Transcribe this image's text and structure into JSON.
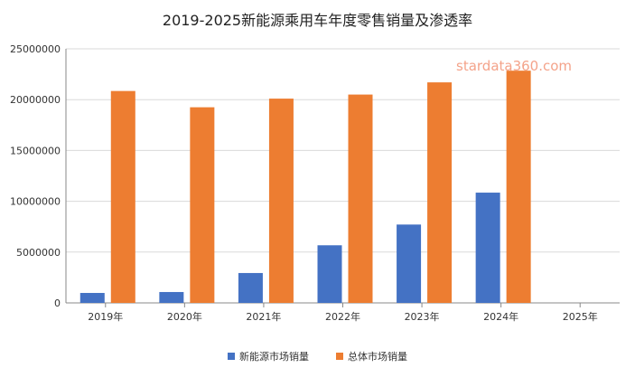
{
  "chart_data": {
    "type": "bar",
    "title": "2019-2025新能源乘用车年度零售销量及渗透率",
    "categories": [
      "2019年",
      "2020年",
      "2021年",
      "2022年",
      "2023年",
      "2024年",
      "2025年"
    ],
    "series": [
      {
        "name": "新能源市场销量",
        "color": "#4472c4",
        "values": [
          980000,
          1070000,
          2940000,
          5670000,
          7710000,
          10850000,
          null
        ]
      },
      {
        "name": "总体市场销量",
        "color": "#ed7d31",
        "values": [
          20850000,
          19250000,
          20100000,
          20500000,
          21700000,
          22850000,
          null
        ]
      }
    ],
    "ylim": [
      0,
      25000000
    ],
    "yticks": [
      "0",
      "5000000",
      "10000000",
      "15000000",
      "20000000",
      "25000000"
    ],
    "ytick_values": [
      0,
      5000000,
      10000000,
      15000000,
      20000000,
      25000000
    ],
    "xlabel": "",
    "ylabel": "",
    "grid": true,
    "legend": "bottom",
    "watermark": "stardata360.com"
  }
}
